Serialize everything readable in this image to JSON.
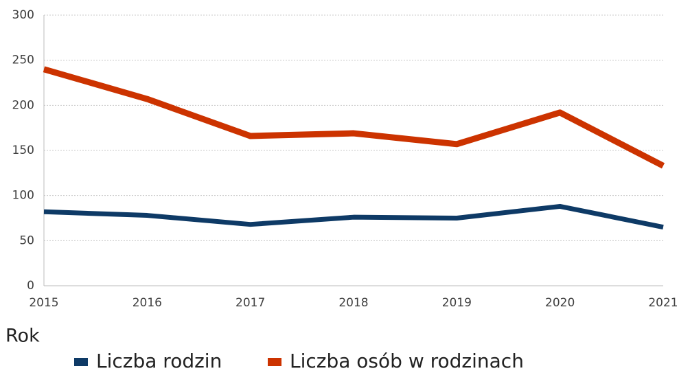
{
  "chart_data": {
    "type": "line",
    "x": [
      2015,
      2016,
      2017,
      2018,
      2019,
      2020,
      2021
    ],
    "xlim": [
      2015,
      2021
    ],
    "xticks": [
      2015,
      2016,
      2017,
      2018,
      2019,
      2020,
      2021
    ],
    "ylim": [
      0,
      300
    ],
    "yticks": [
      0,
      50,
      100,
      150,
      200,
      250,
      300
    ],
    "x_label": "Rok",
    "grid": true,
    "legend": "bottom",
    "series": [
      {
        "name": "Liczba rodzin",
        "color": "#0e3a66",
        "values": [
          82,
          78,
          68,
          76,
          75,
          88,
          65
        ]
      },
      {
        "name": "Liczba osób w rodzinach",
        "color": "#cc3300",
        "values": [
          240,
          207,
          166,
          169,
          157,
          192,
          133
        ]
      }
    ]
  }
}
